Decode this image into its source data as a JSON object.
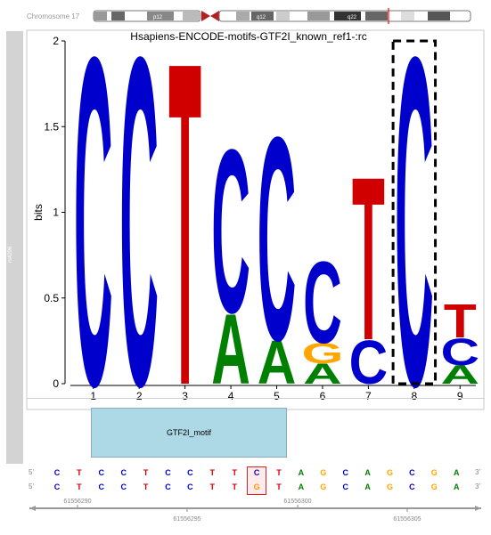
{
  "ideogram": {
    "chromosome_label": "Chromosome 17",
    "bands": [
      "p12",
      "q12",
      "q22"
    ]
  },
  "track": {
    "tab_label": "rs4296"
  },
  "chart_data": {
    "type": "sequence_logo",
    "title": "Hsapiens-ENCODE-motifs-GTF2I_known_ref1-:rc",
    "ylabel": "bits",
    "ylim": [
      0,
      2
    ],
    "yticks": [
      "0",
      "0.5",
      "1",
      "1.5",
      "2"
    ],
    "positions": [
      "1",
      "2",
      "3",
      "4",
      "5",
      "6",
      "7",
      "8",
      "9"
    ],
    "letters": [
      [
        {
          "base": "C",
          "bits": 1.97
        }
      ],
      [
        {
          "base": "C",
          "bits": 1.97
        }
      ],
      [
        {
          "base": "T",
          "bits": 1.94
        }
      ],
      [
        {
          "base": "A",
          "bits": 0.42
        },
        {
          "base": "C",
          "bits": 0.98
        }
      ],
      [
        {
          "base": "A",
          "bits": 0.26
        },
        {
          "base": "C",
          "bits": 1.22
        }
      ],
      [
        {
          "base": "A",
          "bits": 0.12
        },
        {
          "base": "G",
          "bits": 0.12
        },
        {
          "base": "C",
          "bits": 0.49
        }
      ],
      [
        {
          "base": "C",
          "bits": 0.26
        },
        {
          "base": "T",
          "bits": 0.98
        }
      ],
      [
        {
          "base": "C",
          "bits": 1.97
        }
      ],
      [
        {
          "base": "A",
          "bits": 0.11
        },
        {
          "base": "C",
          "bits": 0.16
        },
        {
          "base": "T",
          "bits": 0.2
        }
      ]
    ],
    "highlight_position": "8",
    "base_colors": {
      "A": "#008000",
      "C": "#0000cc",
      "G": "#ffa500",
      "T": "#d00000"
    }
  },
  "motif": {
    "label": "GTF2I_motif"
  },
  "sequence": {
    "row1": [
      "C",
      "T",
      "C",
      "C",
      "T",
      "C",
      "C",
      "T",
      "T",
      "C",
      "T",
      "A",
      "G",
      "C",
      "A",
      "G",
      "C",
      "G",
      "A"
    ],
    "row2": [
      "C",
      "T",
      "C",
      "C",
      "T",
      "C",
      "C",
      "T",
      "T",
      "G",
      "T",
      "A",
      "G",
      "C",
      "A",
      "G",
      "C",
      "G",
      "A"
    ],
    "left_end": "5'",
    "right_end": "3'",
    "highlight_index": 9
  },
  "genome_axis": {
    "labels_top": [
      "61556290",
      "61556300"
    ],
    "labels_bottom": [
      "61556295",
      "61556305"
    ]
  }
}
